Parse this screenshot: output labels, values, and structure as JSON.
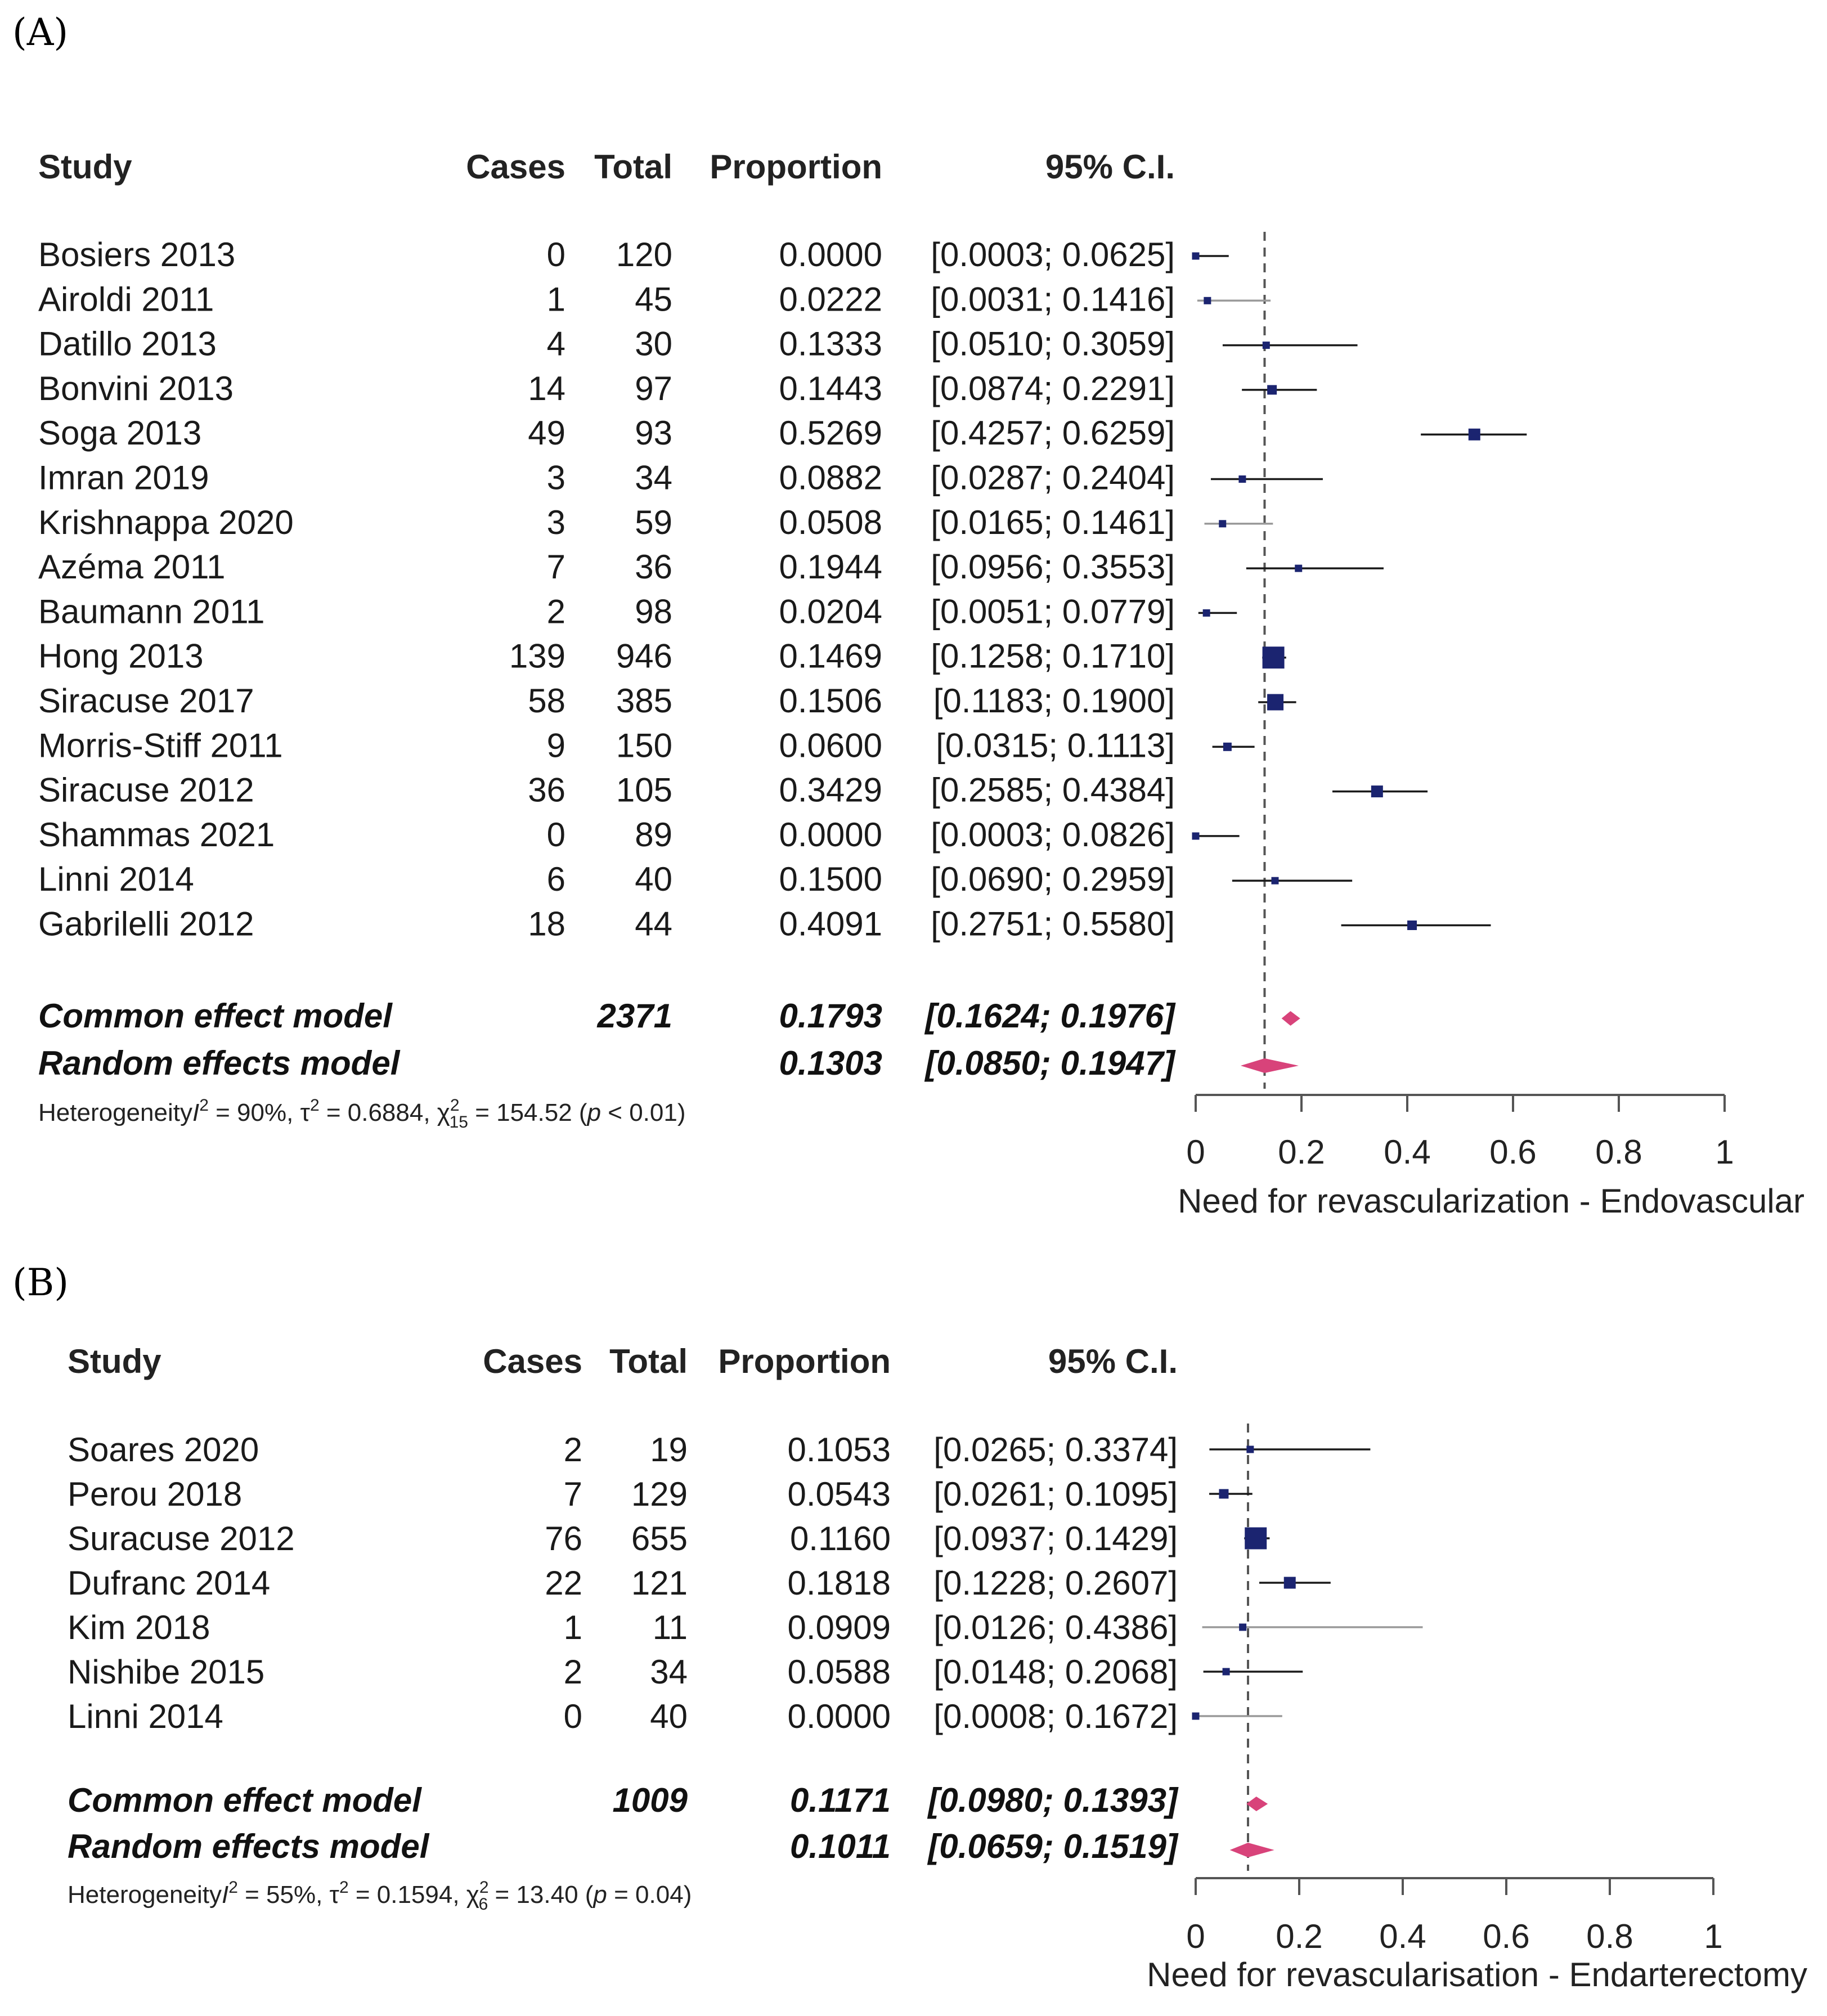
{
  "chart_data": [
    {
      "type": "forest",
      "panel_label": "(A)",
      "columns": {
        "study": "Study",
        "cases": "Cases",
        "total": "Total",
        "proportion": "Proportion",
        "ci": "95% C.I."
      },
      "studies": [
        {
          "study": "Bosiers 2013",
          "cases": "0",
          "total": "120",
          "proportion": "0.0000",
          "ci": "[0.0003; 0.0625]",
          "est": 0.0,
          "lo": 0.0003,
          "hi": 0.0625,
          "weight": 0.3,
          "grey": false
        },
        {
          "study": "Airoldi 2011",
          "cases": "1",
          "total": "45",
          "proportion": "0.0222",
          "ci": "[0.0031; 0.1416]",
          "est": 0.0222,
          "lo": 0.0031,
          "hi": 0.1416,
          "weight": 0.3,
          "grey": true
        },
        {
          "study": "Datillo 2013",
          "cases": "4",
          "total": "30",
          "proportion": "0.1333",
          "ci": "[0.0510; 0.3059]",
          "est": 0.1333,
          "lo": 0.051,
          "hi": 0.3059,
          "weight": 0.3,
          "grey": false
        },
        {
          "study": "Bonvini 2013",
          "cases": "14",
          "total": "97",
          "proportion": "0.1443",
          "ci": "[0.0874; 0.2291]",
          "est": 0.1443,
          "lo": 0.0874,
          "hi": 0.2291,
          "weight": 0.5,
          "grey": false
        },
        {
          "study": "Soga 2013",
          "cases": "49",
          "total": "93",
          "proportion": "0.5269",
          "ci": "[0.4257; 0.6259]",
          "est": 0.5269,
          "lo": 0.4257,
          "hi": 0.6259,
          "weight": 0.7,
          "grey": false
        },
        {
          "study": "Imran 2019",
          "cases": "3",
          "total": "34",
          "proportion": "0.0882",
          "ci": "[0.0287; 0.2404]",
          "est": 0.0882,
          "lo": 0.0287,
          "hi": 0.2404,
          "weight": 0.3,
          "grey": false
        },
        {
          "study": "Krishnappa 2020",
          "cases": "3",
          "total": "59",
          "proportion": "0.0508",
          "ci": "[0.0165; 0.1461]",
          "est": 0.0508,
          "lo": 0.0165,
          "hi": 0.1461,
          "weight": 0.3,
          "grey": true
        },
        {
          "study": "Azéma 2011",
          "cases": "7",
          "total": "36",
          "proportion": "0.1944",
          "ci": "[0.0956; 0.3553]",
          "est": 0.1944,
          "lo": 0.0956,
          "hi": 0.3553,
          "weight": 0.3,
          "grey": false
        },
        {
          "study": "Baumann 2011",
          "cases": "2",
          "total": "98",
          "proportion": "0.0204",
          "ci": "[0.0051; 0.0779]",
          "est": 0.0204,
          "lo": 0.0051,
          "hi": 0.0779,
          "weight": 0.3,
          "grey": false
        },
        {
          "study": "Hong 2013",
          "cases": "139",
          "total": "946",
          "proportion": "0.1469",
          "ci": "[0.1258; 0.1710]",
          "est": 0.1469,
          "lo": 0.1258,
          "hi": 0.171,
          "weight": 1.6,
          "grey": false
        },
        {
          "study": "Siracuse 2017",
          "cases": "58",
          "total": "385",
          "proportion": "0.1506",
          "ci": "[0.1183; 0.1900]",
          "est": 0.1506,
          "lo": 0.1183,
          "hi": 0.19,
          "weight": 1.1,
          "grey": false
        },
        {
          "study": "Morris-Stiff 2011",
          "cases": "9",
          "total": "150",
          "proportion": "0.0600",
          "ci": "[0.0315; 0.1113]",
          "est": 0.06,
          "lo": 0.0315,
          "hi": 0.1113,
          "weight": 0.4,
          "grey": false
        },
        {
          "study": "Siracuse 2012",
          "cases": "36",
          "total": "105",
          "proportion": "0.3429",
          "ci": "[0.2585; 0.4384]",
          "est": 0.3429,
          "lo": 0.2585,
          "hi": 0.4384,
          "weight": 0.7,
          "grey": false
        },
        {
          "study": "Shammas 2021",
          "cases": "0",
          "total": "89",
          "proportion": "0.0000",
          "ci": "[0.0003; 0.0826]",
          "est": 0.0,
          "lo": 0.0003,
          "hi": 0.0826,
          "weight": 0.3,
          "grey": false
        },
        {
          "study": "Linni 2014",
          "cases": "6",
          "total": "40",
          "proportion": "0.1500",
          "ci": "[0.0690; 0.2959]",
          "est": 0.15,
          "lo": 0.069,
          "hi": 0.2959,
          "weight": 0.3,
          "grey": false
        },
        {
          "study": "Gabrilelli 2012",
          "cases": "18",
          "total": "44",
          "proportion": "0.4091",
          "ci": "[0.2751; 0.5580]",
          "est": 0.4091,
          "lo": 0.2751,
          "hi": 0.558,
          "weight": 0.5,
          "grey": false
        }
      ],
      "models": [
        {
          "label": "Common effect model",
          "total": "2371",
          "proportion": "0.1793",
          "ci": "[0.1624; 0.1976]",
          "est": 0.1793,
          "lo": 0.1624,
          "hi": 0.1976
        },
        {
          "label": "Random effects model",
          "total": "",
          "proportion": "0.1303",
          "ci": "[0.0850; 0.1947]",
          "est": 0.1303,
          "lo": 0.085,
          "hi": 0.1947
        }
      ],
      "heterogeneity": {
        "prefix": "Heterogeneity",
        "i2_sym": "I",
        "i2_rest": " = 90%, ",
        "tau_sym": "τ",
        "tau_rest": " = 0.6884, ",
        "chi_sym": "χ",
        "chi_df": "15",
        "chi_rest": " = 154.52 (",
        "p_sym": "p",
        "p_rest": " < 0.01)"
      },
      "reference_line": 0.1303,
      "xlim": [
        0,
        1
      ],
      "ticks": [
        "0",
        "0.2",
        "0.4",
        "0.6",
        "0.8",
        "1"
      ],
      "tick_values": [
        0,
        0.2,
        0.4,
        0.6,
        0.8,
        1
      ],
      "xlabel": "Need for revascularization - Endovascular"
    },
    {
      "type": "forest",
      "panel_label": "(B)",
      "columns": {
        "study": "Study",
        "cases": "Cases",
        "total": "Total",
        "proportion": "Proportion",
        "ci": "95% C.I."
      },
      "studies": [
        {
          "study": "Soares 2020",
          "cases": "2",
          "total": "19",
          "proportion": "0.1053",
          "ci": "[0.0265; 0.3374]",
          "est": 0.1053,
          "lo": 0.0265,
          "hi": 0.3374,
          "weight": 0.3,
          "grey": false
        },
        {
          "study": "Perou 2018",
          "cases": "7",
          "total": "129",
          "proportion": "0.0543",
          "ci": "[0.0261; 0.1095]",
          "est": 0.0543,
          "lo": 0.0261,
          "hi": 0.1095,
          "weight": 0.5,
          "grey": false
        },
        {
          "study": "Suracuse 2012",
          "cases": "76",
          "total": "655",
          "proportion": "0.1160",
          "ci": "[0.0937; 0.1429]",
          "est": 0.116,
          "lo": 0.0937,
          "hi": 0.1429,
          "weight": 1.6,
          "grey": false
        },
        {
          "study": "Dufranc 2014",
          "cases": "22",
          "total": "121",
          "proportion": "0.1818",
          "ci": "[0.1228; 0.2607]",
          "est": 0.1818,
          "lo": 0.1228,
          "hi": 0.2607,
          "weight": 0.7,
          "grey": false
        },
        {
          "study": "Kim 2018",
          "cases": "1",
          "total": "11",
          "proportion": "0.0909",
          "ci": "[0.0126; 0.4386]",
          "est": 0.0909,
          "lo": 0.0126,
          "hi": 0.4386,
          "weight": 0.3,
          "grey": true
        },
        {
          "study": "Nishibe 2015",
          "cases": "2",
          "total": "34",
          "proportion": "0.0588",
          "ci": "[0.0148; 0.2068]",
          "est": 0.0588,
          "lo": 0.0148,
          "hi": 0.2068,
          "weight": 0.3,
          "grey": false
        },
        {
          "study": "Linni 2014",
          "cases": "0",
          "total": "40",
          "proportion": "0.0000",
          "ci": "[0.0008; 0.1672]",
          "est": 0.0,
          "lo": 0.0008,
          "hi": 0.1672,
          "weight": 0.3,
          "grey": true
        }
      ],
      "models": [
        {
          "label": "Common effect model",
          "total": "1009",
          "proportion": "0.1171",
          "ci": "[0.0980; 0.1393]",
          "est": 0.1171,
          "lo": 0.098,
          "hi": 0.1393
        },
        {
          "label": "Random effects model",
          "total": "",
          "proportion": "0.1011",
          "ci": "[0.0659; 0.1519]",
          "est": 0.1011,
          "lo": 0.0659,
          "hi": 0.1519
        }
      ],
      "heterogeneity": {
        "prefix": "Heterogeneity",
        "i2_sym": "I",
        "i2_rest": " = 55%, ",
        "tau_sym": "τ",
        "tau_rest": " = 0.1594, ",
        "chi_sym": "χ",
        "chi_df": "6",
        "chi_rest": " = 13.40 (",
        "p_sym": "p",
        "p_rest": " = 0.04)"
      },
      "reference_line": 0.1011,
      "xlim": [
        0,
        1
      ],
      "ticks": [
        "0",
        "0.2",
        "0.4",
        "0.6",
        "0.8",
        "1"
      ],
      "tick_values": [
        0,
        0.2,
        0.4,
        0.6,
        0.8,
        1
      ],
      "xlabel": "Need for revascularisation - Endarterectomy"
    }
  ],
  "colors": {
    "square": "#1b2470",
    "diamond": "#d8437a",
    "ci_line": "#1a1a1a",
    "ci_grey": "#9a9a9a",
    "ref_line": "#555555",
    "axis": "#555555"
  }
}
